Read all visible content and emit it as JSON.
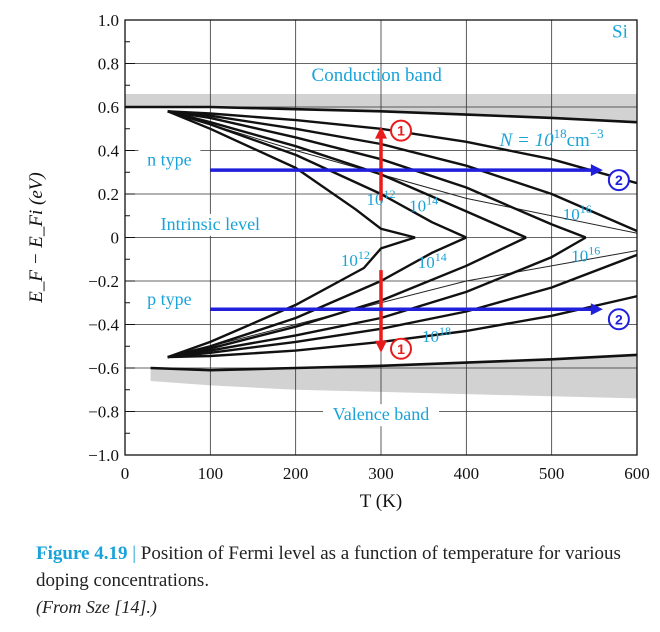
{
  "chart_data": {
    "type": "line",
    "title": "",
    "xlabel": "T (K)",
    "ylabel": "E_F − E_Fi (eV)",
    "xlim": [
      0,
      600
    ],
    "ylim": [
      -1.0,
      1.0
    ],
    "x_ticks": [
      0,
      100,
      200,
      300,
      400,
      500,
      600
    ],
    "y_ticks": [
      1.0,
      0.8,
      0.6,
      0.4,
      0.2,
      0,
      -0.2,
      -0.4,
      -0.6,
      -0.8,
      -1.0
    ],
    "y_tick_labels": [
      "1.0",
      "0.8",
      "0.6",
      "0.4",
      "0.2",
      "0",
      "−0.2",
      "−0.4",
      "−0.6",
      "−0.8",
      "−1.0"
    ],
    "grid": true,
    "material": "Si",
    "band_labels": {
      "conduction": "Conduction band",
      "valence": "Valence band",
      "intrinsic": "Intrinsic level",
      "n_type": "n type",
      "p_type": "p type"
    },
    "conduction_band_edge": {
      "x": [
        0,
        100,
        200,
        300,
        400,
        500,
        600
      ],
      "y": [
        0.6,
        0.6,
        0.59,
        0.58,
        0.565,
        0.55,
        0.53
      ]
    },
    "valence_band_edge": {
      "x": [
        30,
        100,
        200,
        300,
        400,
        500,
        600
      ],
      "y": [
        -0.6,
        -0.61,
        -0.6,
        -0.59,
        -0.575,
        -0.56,
        -0.54
      ]
    },
    "shaded_bands": [
      {
        "name": "conduction",
        "upper": [
          0.66,
          0.66,
          0.66,
          0.66,
          0.66,
          0.66,
          0.66
        ]
      },
      {
        "name": "valence",
        "lower": [
          -0.66,
          -0.68,
          -0.7,
          -0.71,
          -0.72,
          -0.73,
          -0.74
        ]
      }
    ],
    "series": [
      {
        "name": "n 1e12",
        "x": [
          50,
          100,
          200,
          270,
          300,
          340
        ],
        "y": [
          0.58,
          0.5,
          0.32,
          0.13,
          0.04,
          0
        ]
      },
      {
        "name": "n 1e14",
        "x": [
          50,
          100,
          200,
          300,
          360,
          400
        ],
        "y": [
          0.58,
          0.52,
          0.38,
          0.2,
          0.07,
          0
        ]
      },
      {
        "name": "n 1e15",
        "x": [
          50,
          100,
          200,
          300,
          400,
          470
        ],
        "y": [
          0.58,
          0.53,
          0.42,
          0.29,
          0.12,
          0
        ]
      },
      {
        "name": "n 1e16",
        "x": [
          50,
          100,
          200,
          300,
          400,
          500,
          540
        ],
        "y": [
          0.58,
          0.55,
          0.46,
          0.36,
          0.23,
          0.06,
          0
        ]
      },
      {
        "name": "n 1e17",
        "x": [
          50,
          100,
          200,
          300,
          400,
          500,
          600
        ],
        "y": [
          0.58,
          0.56,
          0.5,
          0.43,
          0.33,
          0.2,
          0.03
        ]
      },
      {
        "name": "n 1e18",
        "x": [
          50,
          100,
          200,
          300,
          400,
          500,
          600
        ],
        "y": [
          0.58,
          0.57,
          0.54,
          0.5,
          0.44,
          0.36,
          0.25
        ]
      },
      {
        "name": "p 1e12",
        "x": [
          50,
          100,
          200,
          280,
          300,
          340
        ],
        "y": [
          -0.55,
          -0.48,
          -0.31,
          -0.14,
          -0.05,
          0
        ]
      },
      {
        "name": "p 1e14",
        "x": [
          50,
          100,
          200,
          300,
          360,
          400
        ],
        "y": [
          -0.55,
          -0.5,
          -0.37,
          -0.2,
          -0.07,
          0
        ]
      },
      {
        "name": "p 1e15",
        "x": [
          50,
          100,
          200,
          300,
          400,
          470
        ],
        "y": [
          -0.55,
          -0.51,
          -0.41,
          -0.29,
          -0.13,
          0
        ]
      },
      {
        "name": "p 1e16",
        "x": [
          50,
          100,
          200,
          300,
          400,
          500,
          540
        ],
        "y": [
          -0.55,
          -0.52,
          -0.45,
          -0.37,
          -0.25,
          -0.09,
          0
        ]
      },
      {
        "name": "p 1e17",
        "x": [
          50,
          100,
          200,
          300,
          400,
          500,
          600
        ],
        "y": [
          -0.55,
          -0.53,
          -0.48,
          -0.42,
          -0.34,
          -0.23,
          -0.08
        ]
      },
      {
        "name": "p 1e18",
        "x": [
          50,
          100,
          200,
          300,
          400,
          500,
          600
        ],
        "y": [
          -0.55,
          -0.545,
          -0.52,
          -0.48,
          -0.43,
          -0.36,
          -0.27
        ]
      }
    ],
    "thin_series": [
      {
        "name": "n thin",
        "x": [
          50,
          200,
          400,
          600
        ],
        "y": [
          0.58,
          0.4,
          0.18,
          0.02
        ]
      },
      {
        "name": "p thin",
        "x": [
          50,
          200,
          400,
          600
        ],
        "y": [
          -0.55,
          -0.4,
          -0.2,
          -0.06
        ]
      }
    ],
    "annotations": [
      {
        "base": "10",
        "exp": "12",
        "x": 300,
        "y": 0.15
      },
      {
        "base": "10",
        "exp": "14",
        "x": 350,
        "y": 0.12
      },
      {
        "base": "10",
        "exp": "16",
        "x": 530,
        "y": 0.08
      },
      {
        "base": "10",
        "exp": "12",
        "x": 270,
        "y": -0.13
      },
      {
        "base": "10",
        "exp": "14",
        "x": 360,
        "y": -0.14
      },
      {
        "base": "10",
        "exp": "16",
        "x": 540,
        "y": -0.11
      },
      {
        "base": "10",
        "exp": "18",
        "x": 365,
        "y": -0.48
      }
    ],
    "n_label": {
      "prefix": "N = 10",
      "exp": "18",
      "unit": "cm",
      "unit_exp": "−3"
    },
    "arrows": [
      {
        "type": "vertical",
        "x": 300,
        "y_from": 0.17,
        "y_to": 0.51,
        "marker": "1"
      },
      {
        "type": "vertical",
        "x": 300,
        "y_from": -0.15,
        "y_to": -0.53,
        "marker": "1"
      },
      {
        "type": "horizontal",
        "y": 0.31,
        "x_from": 100,
        "x_to": 560,
        "marker": "2"
      },
      {
        "type": "horizontal",
        "y": -0.33,
        "x_from": 100,
        "x_to": 560,
        "marker": "2"
      }
    ]
  },
  "caption": {
    "figure": "Figure 4.19",
    "separator": "|",
    "text": "Position of Fermi level as a function of temperature for various doping concentrations.",
    "source": "(From Sze [14].)"
  }
}
